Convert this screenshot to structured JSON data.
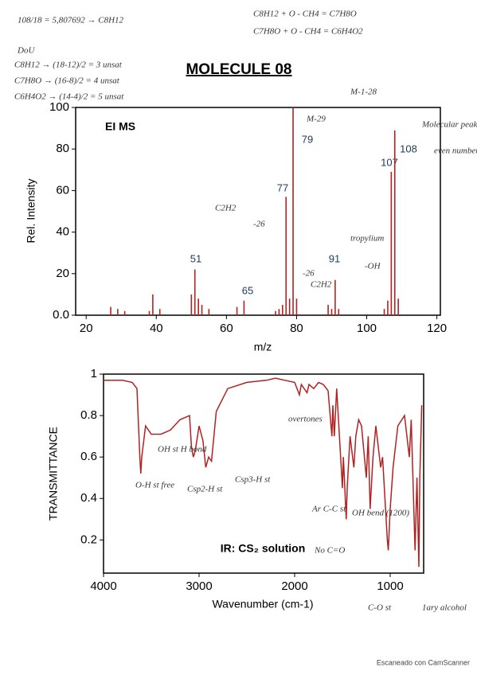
{
  "notes": [
    "108/18 = 5,807692 → C8H12",
    "C8H12 + O - CH4 = C7H8O",
    "C7H8O + O - CH4 = C6H4O2",
    "DoU",
    "C8H12 → (18-12)/2 = 3 unsat",
    "C7H8O → (16-8)/2 = 4 unsat",
    "C6H4O2 → (14-4)/2 = 5 unsat"
  ],
  "footer": "Escaneado con CamScanner",
  "chart_data": [
    {
      "type": "bar",
      "title": "MOLECULE 08",
      "label": "EI MS",
      "xlabel": "m/z",
      "ylabel": "Rel. Intensity",
      "color": "#b22222",
      "x": [
        27,
        29,
        31,
        38,
        39,
        41,
        50,
        51,
        52,
        53,
        55,
        63,
        65,
        74,
        75,
        76,
        77,
        78,
        79,
        80,
        89,
        90,
        91,
        92,
        105,
        106,
        107,
        108,
        109
      ],
      "values": [
        4,
        3,
        2,
        2,
        10,
        3,
        10,
        22,
        8,
        5,
        3,
        4,
        7,
        2,
        3,
        5,
        57,
        8,
        100,
        8,
        5,
        3,
        17,
        3,
        3,
        7,
        69,
        89,
        8
      ],
      "xlim": [
        17,
        121
      ],
      "xticks": [
        20,
        40,
        60,
        80,
        100,
        120
      ],
      "ylim": [
        0,
        100
      ],
      "yticks": [
        {
          "value": 0,
          "label": "0.0"
        },
        20,
        40,
        60,
        80,
        100
      ],
      "annotations": [
        "M-1-28",
        "M-29",
        "Molecular peak",
        "even number",
        "C2H2",
        "-26",
        "tropylium",
        "-26",
        "C2H2",
        "-OH"
      ]
    },
    {
      "type": "line",
      "label": "IR: CS₂ solution",
      "xlabel": "Wavenumber (cm-1)",
      "ylabel": "TRANSMITTANCE",
      "color": "#b22222",
      "x": [
        4000,
        3800,
        3700,
        3650,
        3620,
        3610,
        3600,
        3560,
        3500,
        3400,
        3300,
        3200,
        3100,
        3080,
        3060,
        3040,
        3000,
        2960,
        2930,
        2900,
        2870,
        2820,
        2700,
        2500,
        2300,
        2200,
        2100,
        2000,
        1950,
        1930,
        1870,
        1850,
        1800,
        1750,
        1700,
        1650,
        1610,
        1600,
        1585,
        1560,
        1500,
        1490,
        1460,
        1450,
        1420,
        1380,
        1360,
        1330,
        1300,
        1250,
        1230,
        1210,
        1180,
        1150,
        1100,
        1080,
        1030,
        1020,
        1000,
        970,
        920,
        850,
        800,
        780,
        740,
        720,
        700,
        690,
        670
      ],
      "values": [
        0.97,
        0.97,
        0.96,
        0.93,
        0.6,
        0.52,
        0.6,
        0.75,
        0.71,
        0.71,
        0.73,
        0.78,
        0.8,
        0.65,
        0.6,
        0.63,
        0.75,
        0.68,
        0.55,
        0.6,
        0.58,
        0.82,
        0.93,
        0.96,
        0.97,
        0.98,
        0.97,
        0.96,
        0.9,
        0.95,
        0.91,
        0.95,
        0.93,
        0.96,
        0.95,
        0.92,
        0.7,
        0.85,
        0.7,
        0.93,
        0.45,
        0.6,
        0.3,
        0.45,
        0.7,
        0.55,
        0.7,
        0.78,
        0.75,
        0.5,
        0.7,
        0.35,
        0.6,
        0.75,
        0.55,
        0.6,
        0.2,
        0.15,
        0.35,
        0.55,
        0.75,
        0.8,
        0.6,
        0.78,
        0.15,
        0.5,
        0.07,
        0.5,
        0.85
      ],
      "xlim": [
        4000,
        650
      ],
      "xticks": [
        4000,
        3000,
        2000,
        1000
      ],
      "ylim": [
        0.04,
        1
      ],
      "yticks": [
        0.2,
        0.4,
        0.6,
        0.8,
        1
      ],
      "annotations": [
        "O-H st free",
        "OH st H bond",
        "Csp2-H st",
        "Csp3-H st",
        "overtones",
        "Ar C-C st",
        "OH bend (1200)",
        "No C=O",
        "C-O st",
        "1ary alcohol"
      ]
    }
  ]
}
